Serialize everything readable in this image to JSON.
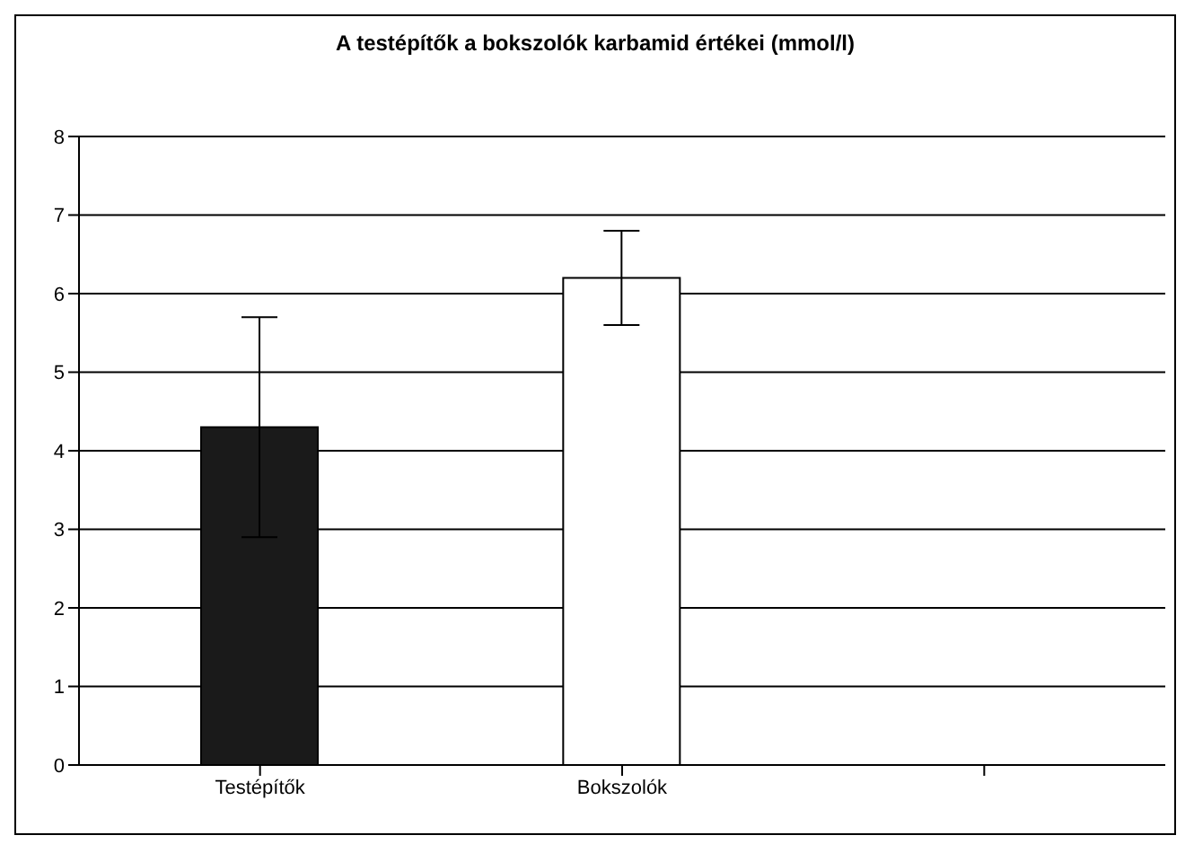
{
  "chart_data": {
    "type": "bar",
    "title": "A testépítők a bokszolók karbamid értékei (mmol/l)",
    "categories": [
      "Testépítők",
      "Bokszolók",
      null
    ],
    "values": [
      4.3,
      6.2,
      null
    ],
    "colors": [
      "#1a1a1a",
      "#ffffff",
      null
    ],
    "errors": [
      1.4,
      0.6,
      null
    ],
    "ylim": [
      0,
      8
    ],
    "yticks": [
      0,
      1,
      2,
      3,
      4,
      5,
      6,
      7,
      8
    ],
    "grid": "y"
  }
}
